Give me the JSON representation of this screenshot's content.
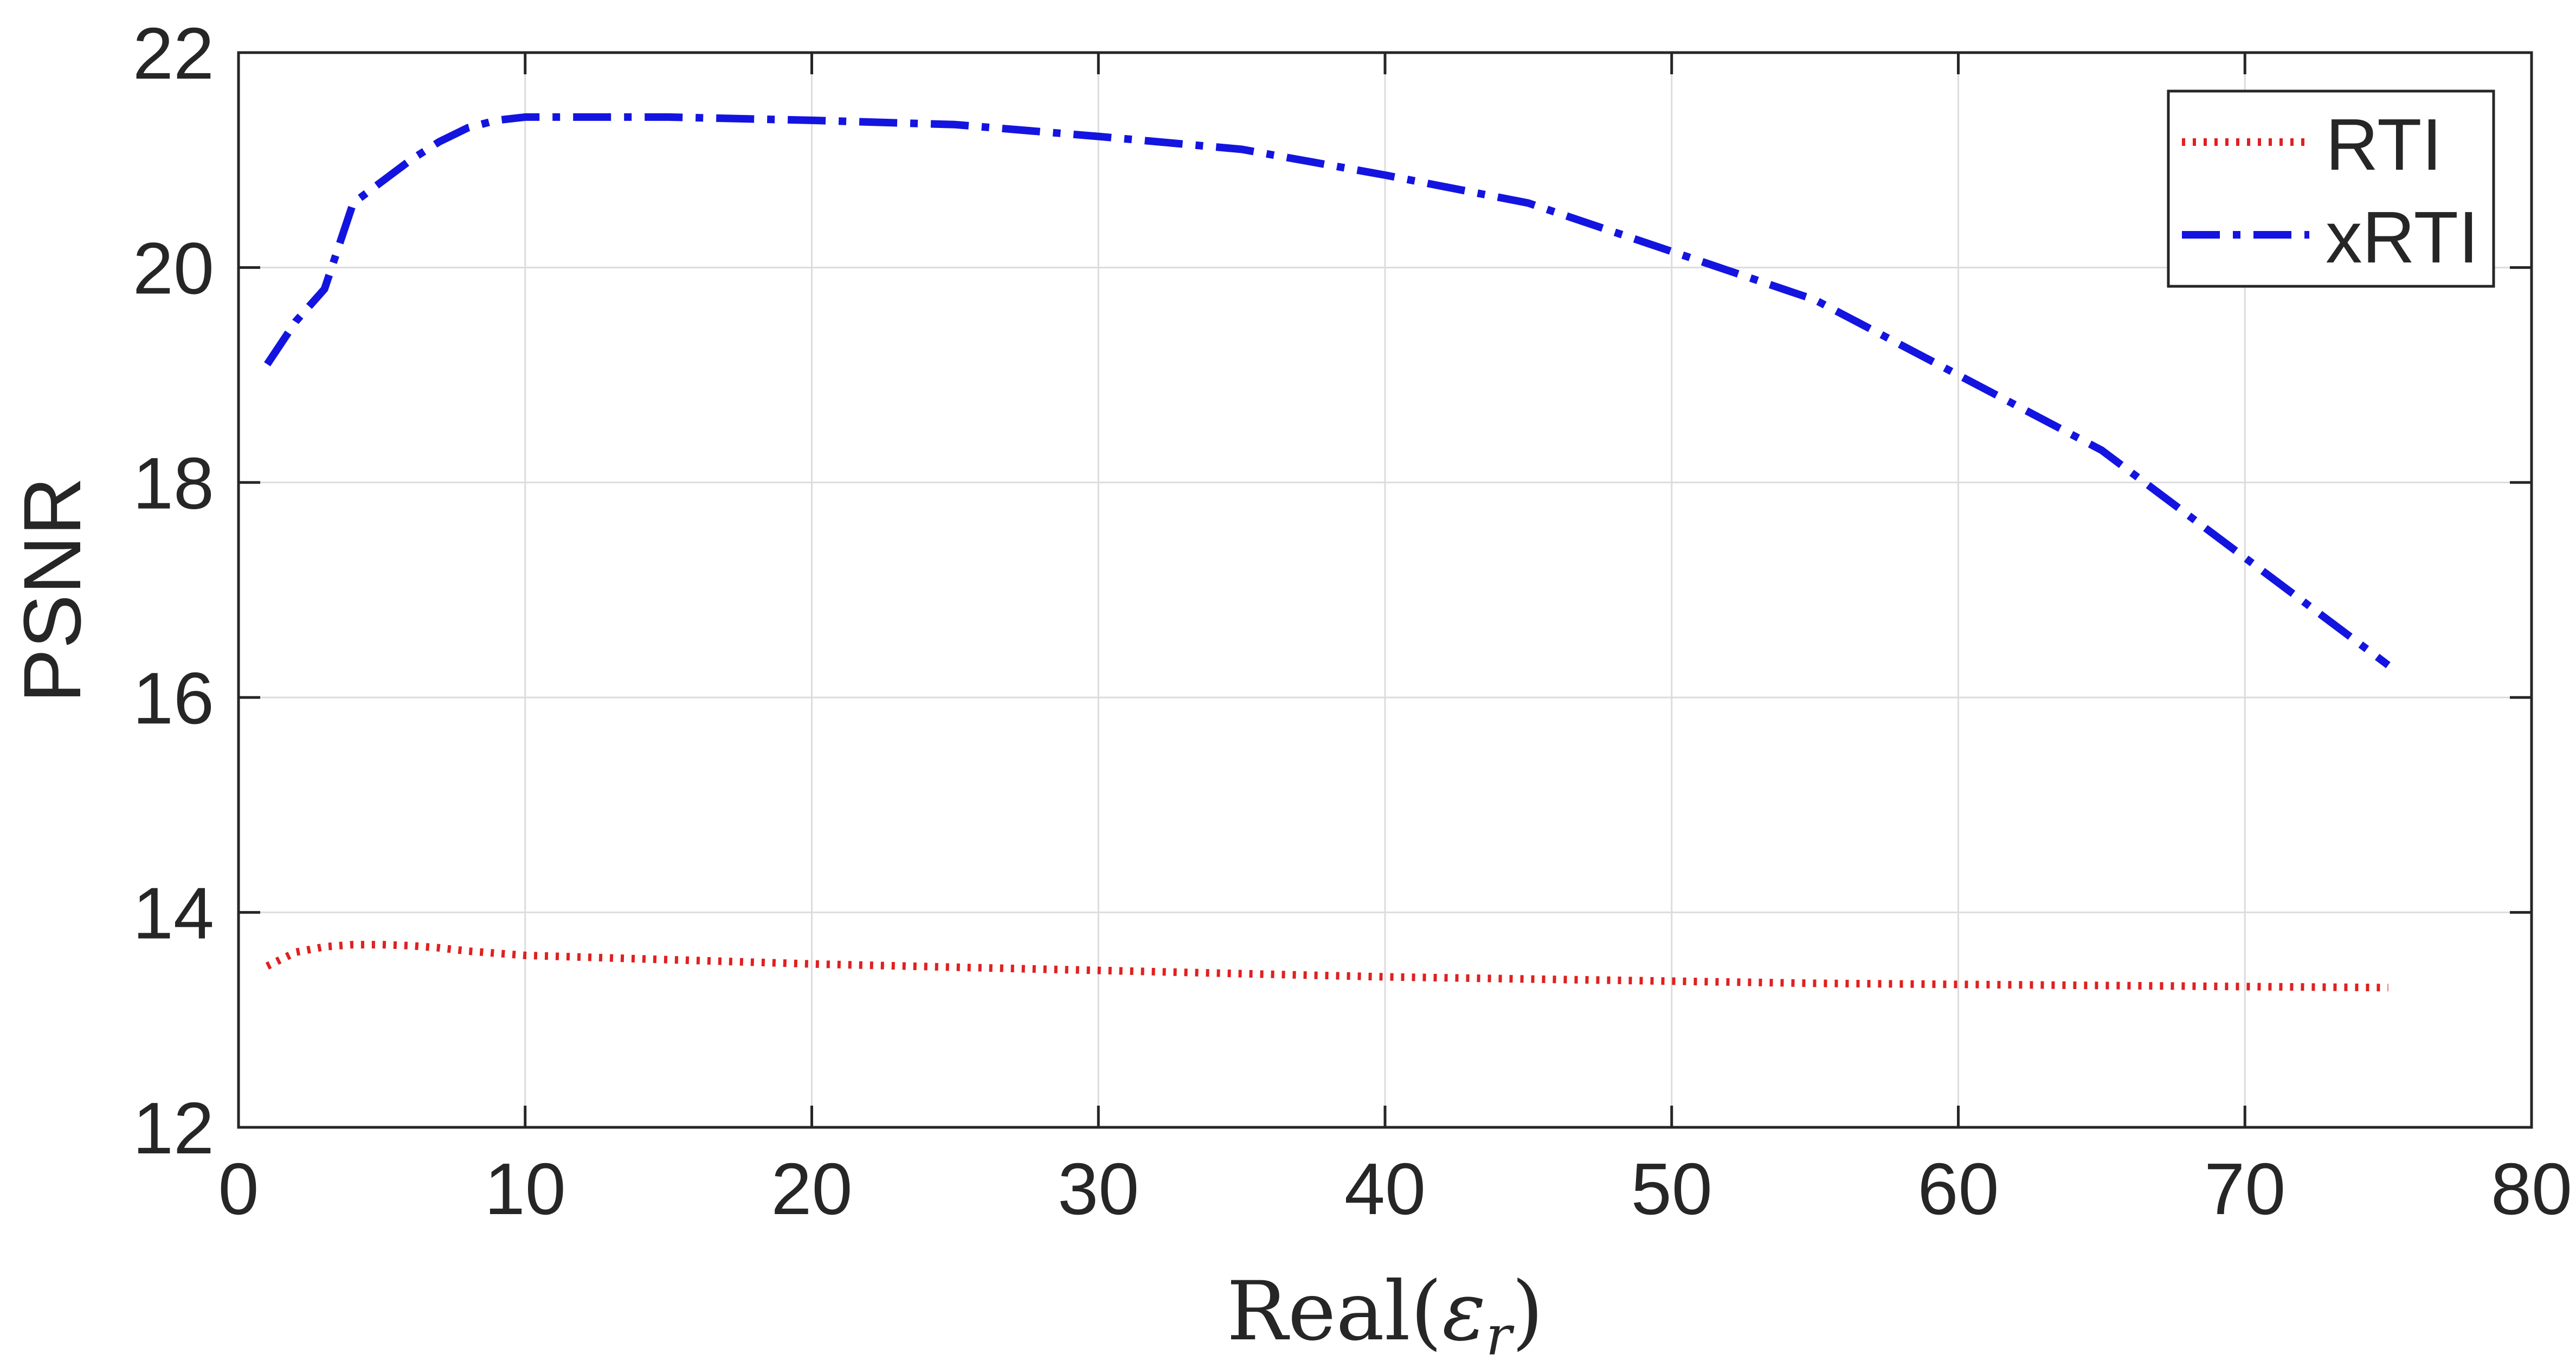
{
  "chart_data": {
    "type": "line",
    "title": "",
    "xlabel": {
      "prefix": "Real(",
      "symbol": "ε",
      "subscript": "r",
      "suffix": ")"
    },
    "ylabel": "PSNR",
    "xlim": [
      0,
      80
    ],
    "ylim": [
      12,
      22
    ],
    "xticks": [
      0,
      10,
      20,
      30,
      40,
      50,
      60,
      70,
      80
    ],
    "yticks": [
      12,
      14,
      16,
      18,
      20,
      22
    ],
    "grid": true,
    "legend_position": "top-right",
    "series": [
      {
        "name": "RTI",
        "color": "#e02020",
        "style": "dotted",
        "x": [
          1,
          2,
          3,
          4,
          5,
          6,
          7,
          8,
          10,
          15,
          20,
          25,
          30,
          35,
          40,
          45,
          50,
          55,
          60,
          65,
          70,
          75
        ],
        "y": [
          13.5,
          13.63,
          13.68,
          13.7,
          13.7,
          13.69,
          13.67,
          13.64,
          13.6,
          13.56,
          13.52,
          13.49,
          13.46,
          13.43,
          13.4,
          13.38,
          13.36,
          13.34,
          13.33,
          13.32,
          13.31,
          13.3
        ]
      },
      {
        "name": "xRTI",
        "color": "#1414e0",
        "style": "dashdot",
        "x": [
          1,
          2,
          3,
          4,
          5,
          6,
          7,
          8,
          9,
          10,
          15,
          20,
          25,
          30,
          35,
          40,
          45,
          50,
          55,
          60,
          65,
          70,
          75
        ],
        "y": [
          19.1,
          19.5,
          19.8,
          20.6,
          20.8,
          21.0,
          21.17,
          21.3,
          21.37,
          21.4,
          21.4,
          21.37,
          21.33,
          21.22,
          21.1,
          20.86,
          20.6,
          20.15,
          19.7,
          19.0,
          18.3,
          17.3,
          16.3
        ]
      }
    ]
  }
}
